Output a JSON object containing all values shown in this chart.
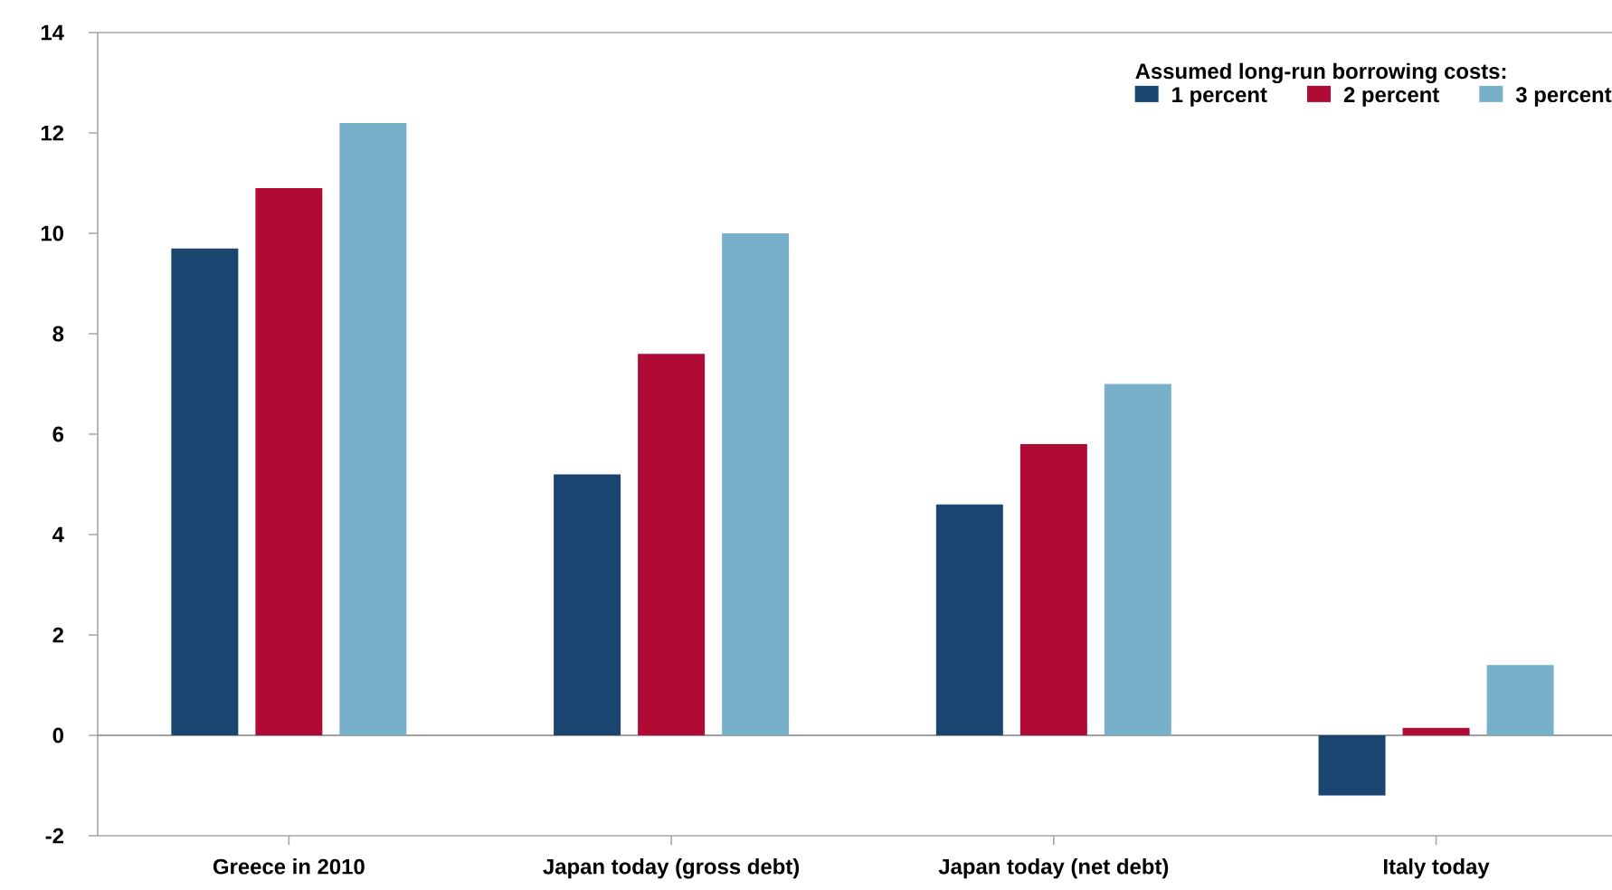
{
  "chart_data": {
    "type": "bar",
    "categories": [
      "Greece in 2010",
      "Japan today (gross debt)",
      "Japan today (net debt)",
      "Italy today"
    ],
    "series": [
      {
        "name": "1 percent",
        "color": "#1a4570",
        "values": [
          9.7,
          5.2,
          4.6,
          -1.2
        ]
      },
      {
        "name": "2 percent",
        "color": "#b00b35",
        "values": [
          10.9,
          7.6,
          5.8,
          0.15
        ]
      },
      {
        "name": "3 percent",
        "color": "#78b0cc",
        "values": [
          12.2,
          10.0,
          7.0,
          1.4
        ]
      }
    ],
    "ylim": [
      -2,
      14
    ],
    "yticks": [
      -2,
      0,
      2,
      4,
      6,
      8,
      10,
      12,
      14
    ],
    "ref_lines": [
      {
        "axis": "y",
        "value": 0,
        "color": "#808080"
      }
    ],
    "legend": "top right",
    "legend_title": "Assumed long-run borrowing costs:"
  }
}
